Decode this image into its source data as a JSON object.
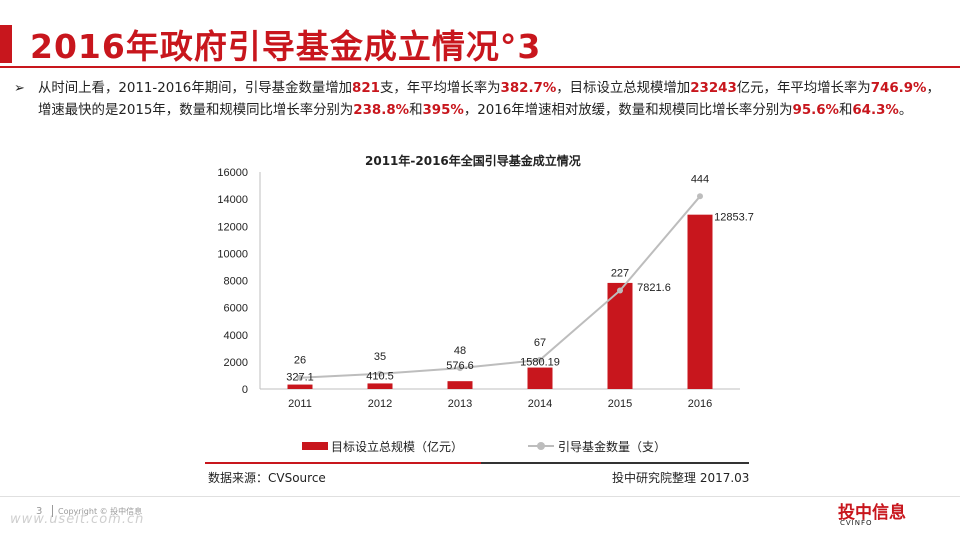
{
  "header": {
    "title": "2016年政府引导基金成立情况°3"
  },
  "bullet": {
    "arrow": "➢",
    "parts": [
      {
        "text": "从时间上看，2011-2016年期间，引导基金数量增加",
        "hl": false
      },
      {
        "text": "821",
        "hl": true
      },
      {
        "text": "支，年平均增长率为",
        "hl": false
      },
      {
        "text": "382.7%",
        "hl": true
      },
      {
        "text": "，目标设立总规模增加",
        "hl": false
      },
      {
        "text": "23243",
        "hl": true
      },
      {
        "text": "亿元，年平均增长率为",
        "hl": false
      },
      {
        "text": "746.9%",
        "hl": true
      },
      {
        "text": "，增速最快的是2015年，数量和规模同比增长率分别为",
        "hl": false
      },
      {
        "text": "238.8%",
        "hl": true
      },
      {
        "text": "和",
        "hl": false
      },
      {
        "text": "395%",
        "hl": true
      },
      {
        "text": "，2016年增速相对放缓，数量和规模同比增长率分别为",
        "hl": false
      },
      {
        "text": "95.6%",
        "hl": true
      },
      {
        "text": "和",
        "hl": false
      },
      {
        "text": "64.3%",
        "hl": true
      },
      {
        "text": "。",
        "hl": false
      }
    ]
  },
  "chart_data": {
    "type": "bar",
    "title": "2011年-2016年全国引导基金成立情况",
    "categories": [
      "2011",
      "2012",
      "2013",
      "2014",
      "2015",
      "2016"
    ],
    "series": [
      {
        "name": "目标设立总规模（亿元）",
        "type": "bar",
        "values": [
          327.1,
          410.5,
          576.6,
          1580.19,
          7821.6,
          12853.7
        ],
        "labels": [
          "327.1",
          "410.5",
          "576.6",
          "1580.19",
          "7821.6",
          "12853.7"
        ],
        "color": "#c8161d"
      },
      {
        "name": "引导基金数量（支）",
        "type": "line",
        "values": [
          26,
          35,
          48,
          67,
          227,
          444
        ],
        "labels": [
          "26",
          "35",
          "48",
          "67",
          "227",
          "444"
        ],
        "color": "#bdbdbd"
      }
    ],
    "ylim": [
      0,
      16000
    ],
    "yticks": [
      "0",
      "2000",
      "4000",
      "6000",
      "8000",
      "10000",
      "12000",
      "14000",
      "16000"
    ],
    "grid": false,
    "legend": "bottom"
  },
  "footer": {
    "source_left": "数据来源：CVSource",
    "source_right": "投中研究院整理 2017.03",
    "page_number": "3",
    "copyright": "Copyright © 投中信息",
    "watermark": "www.useit.com.cn",
    "logo_text": "投中信息",
    "logo_sub": "CVINFO"
  },
  "colors": {
    "accent": "#c8161d",
    "line_series": "#bdbdbd"
  }
}
